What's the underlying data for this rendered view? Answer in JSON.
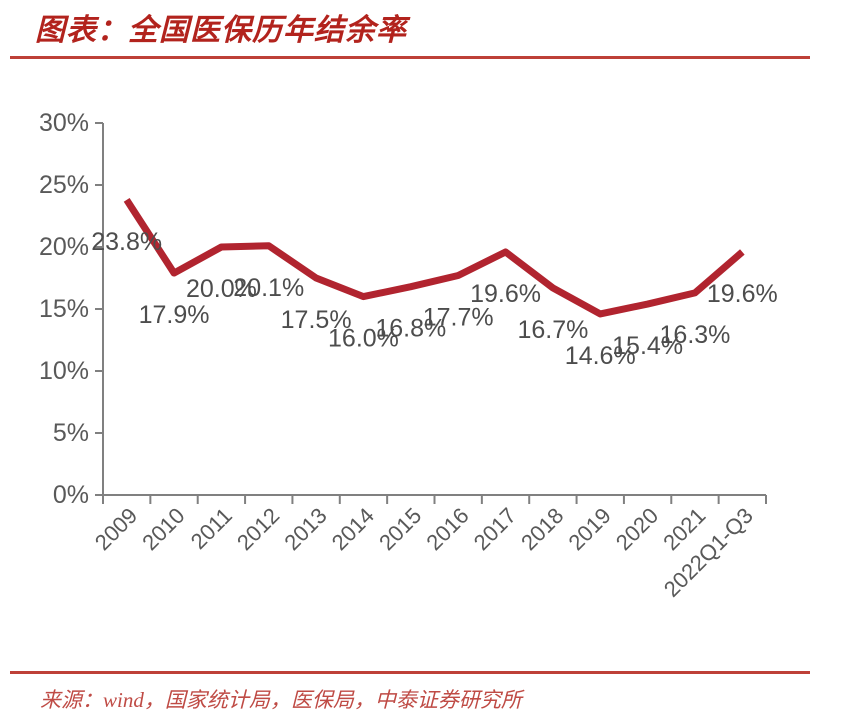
{
  "title": "图表：全国医保历年结余率",
  "source": "来源：wind，国家统计局，医保局，中泰证券研究所",
  "colors": {
    "title_red": "#B2231D",
    "rule_red": "#BE4038",
    "source_red": "#BF4B45",
    "line_red": "#B1242F",
    "data_label_gray": "#4D4D4D",
    "axis_line_gray": "#808080",
    "tick_text_gray": "#595959",
    "background": "#FFFFFF"
  },
  "chart_data": {
    "type": "line",
    "title": "全国医保历年结余率",
    "categories": [
      "2009",
      "2010",
      "2011",
      "2012",
      "2013",
      "2014",
      "2015",
      "2016",
      "2017",
      "2018",
      "2019",
      "2020",
      "2021",
      "2022Q1-Q3"
    ],
    "values": [
      23.8,
      17.9,
      20.0,
      20.1,
      17.5,
      16.0,
      16.8,
      17.7,
      19.6,
      16.7,
      14.6,
      15.4,
      16.3,
      19.6
    ],
    "value_labels": [
      "23.8%",
      "17.9%",
      "20.0%",
      "20.1%",
      "17.5%",
      "16.0%",
      "16.8%",
      "17.7%",
      "19.6%",
      "16.7%",
      "14.6%",
      "15.4%",
      "16.3%",
      "19.6%"
    ],
    "y_ticks": [
      0,
      5,
      10,
      15,
      20,
      25,
      30
    ],
    "y_tick_labels": [
      "0%",
      "5%",
      "10%",
      "15%",
      "20%",
      "25%",
      "30%"
    ],
    "ylim": [
      0,
      30
    ],
    "xlabel": "",
    "ylabel": "",
    "grid": false,
    "legend": "none",
    "x_label_rotation_deg": -45
  }
}
